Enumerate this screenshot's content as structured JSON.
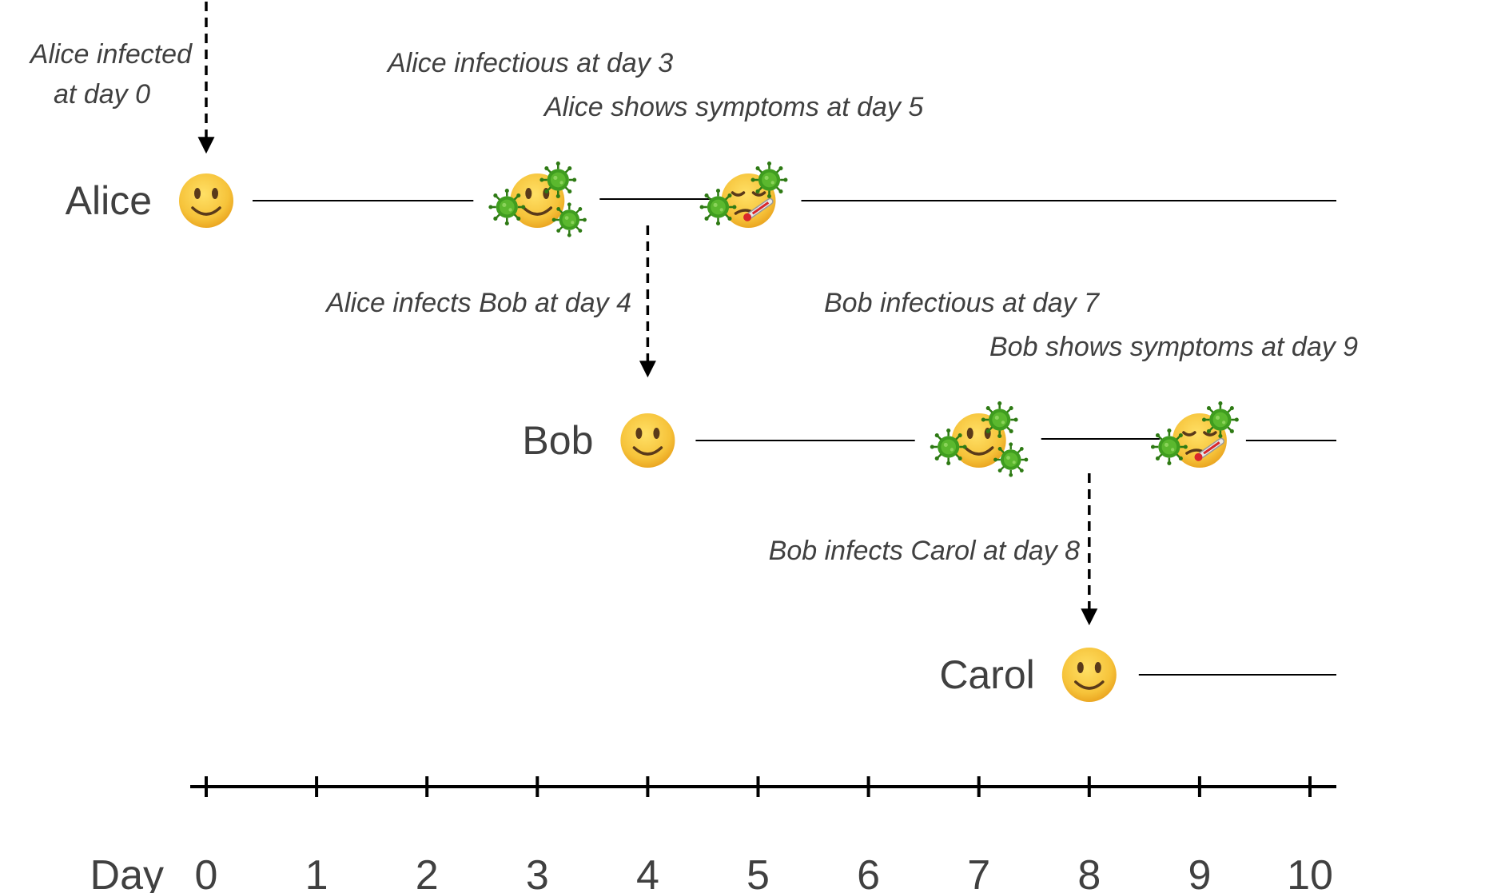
{
  "people": [
    {
      "id": "alice",
      "name": "Alice",
      "infected_day": 0,
      "infectious_day": 3,
      "symptoms_day": 5
    },
    {
      "id": "bob",
      "name": "Bob",
      "infected_day": 4,
      "infectious_day": 7,
      "symptoms_day": 9
    },
    {
      "id": "carol",
      "name": "Carol",
      "infected_day": 8
    }
  ],
  "annotations": {
    "alice_infected": [
      "Alice infected",
      "at day 0"
    ],
    "alice_infectious": "Alice infectious at day 3",
    "alice_symptoms": "Alice shows symptoms at day 5",
    "alice_infects_bob": "Alice infects Bob at day 4",
    "bob_infectious": "Bob infectious at day 7",
    "bob_symptoms": "Bob shows symptoms at day 9",
    "bob_infects_carol": "Bob infects Carol at day 8"
  },
  "axis": {
    "label": "Day",
    "ticks": [
      "0",
      "1",
      "2",
      "3",
      "4",
      "5",
      "6",
      "7",
      "8",
      "9",
      "10"
    ]
  },
  "icons": {
    "healthy": "slightly-smiling-face-icon",
    "infectious": "smiling-face-with-virus-icon",
    "symptomatic": "face-with-thermometer-and-virus-icon"
  },
  "colors": {
    "face": "#f6c33a",
    "virus": "#3f9d1f",
    "text": "#404040"
  }
}
